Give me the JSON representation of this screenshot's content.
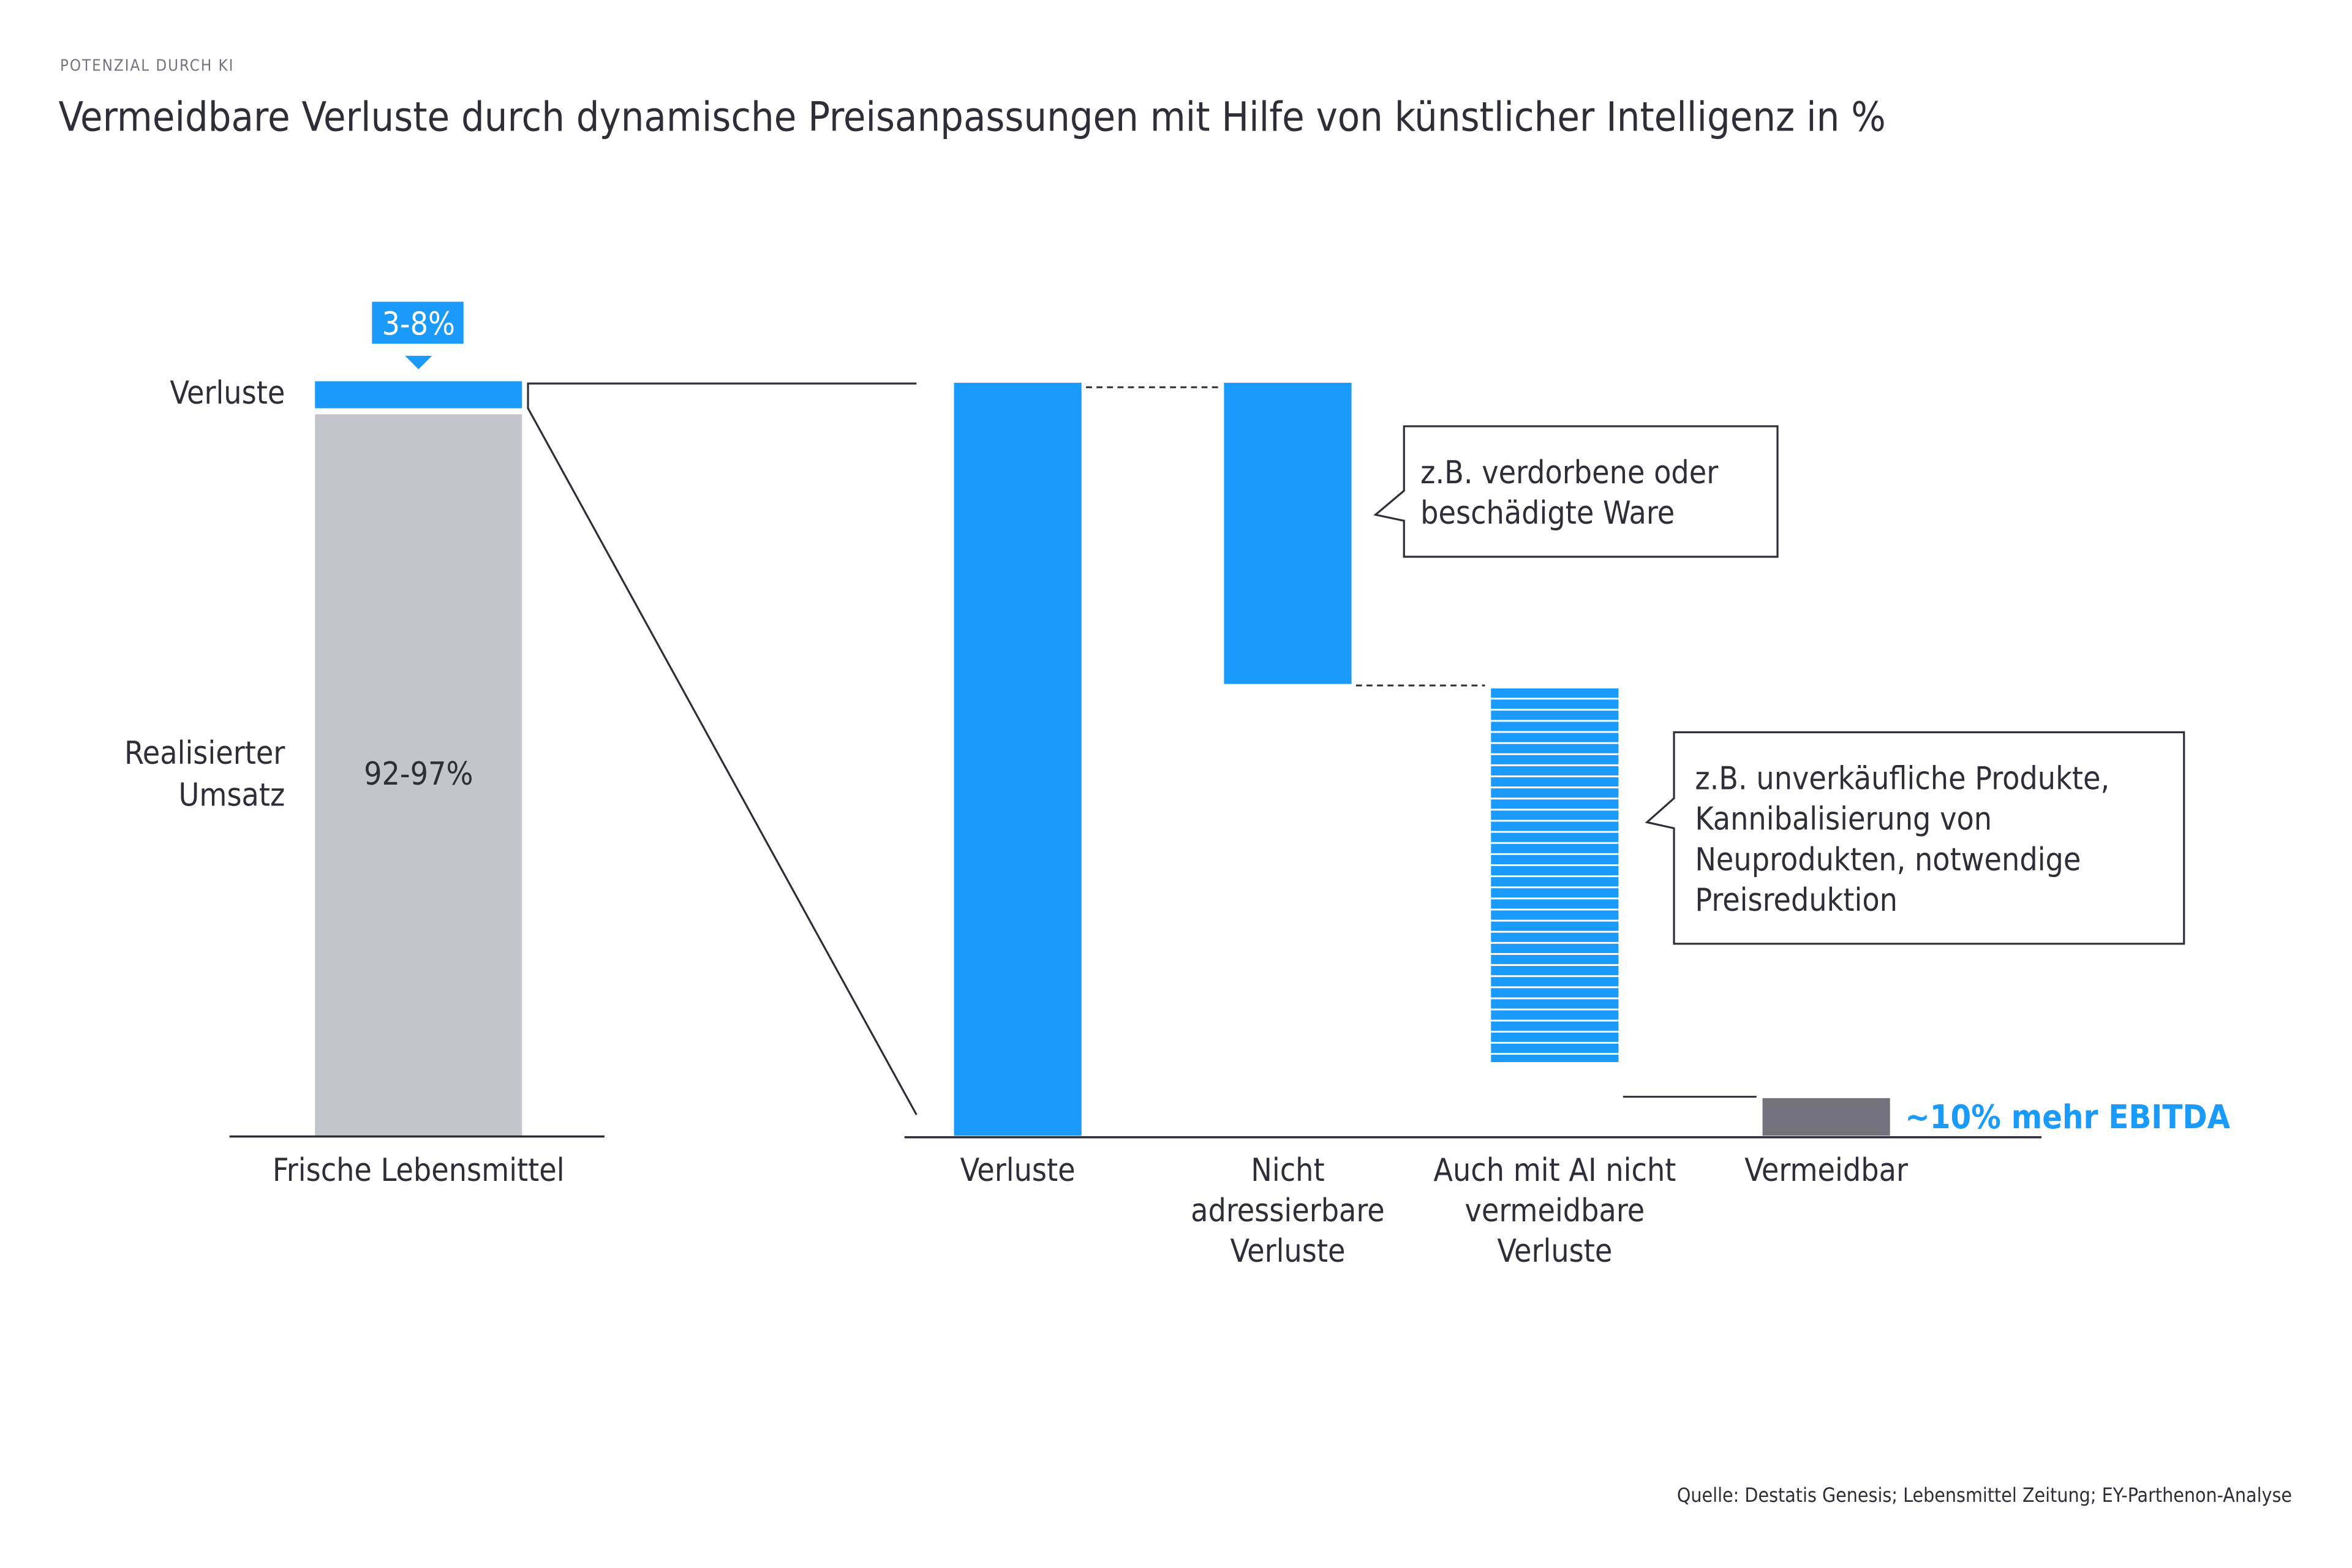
{
  "header": {
    "kicker": "POTENZIAL DURCH KI",
    "title": "Vermeidbare Verluste durch dynamische Preisanpassungen mit Hilfe von künstlicher Intelligenz in %"
  },
  "colors": {
    "blue": "#1a9afa",
    "light_gray": "#c4c4cc",
    "dark_gray": "#74737d",
    "text": "#2e2e38",
    "kicker": "#747480"
  },
  "chart_data": [
    {
      "type": "bar",
      "subtype": "stacked",
      "categories": [
        "Frische Lebensmittel"
      ],
      "series": [
        {
          "name": "Realisierter Umsatz",
          "label": "92-97%",
          "range": [
            92,
            97
          ],
          "values": [
            94.5
          ]
        },
        {
          "name": "Verluste",
          "label": "3-8%",
          "range": [
            3,
            8
          ],
          "values": [
            5.5
          ]
        }
      ],
      "segment_labels": {
        "verluste": "Verluste",
        "umsatz_line1": "Realisierter",
        "umsatz_line2": "Umsatz"
      },
      "badge": "3-8%",
      "inner_label": "92-97%",
      "xlabel": "",
      "ylabel": "",
      "ylim": [
        0,
        100
      ],
      "grid": false
    },
    {
      "type": "bar",
      "subtype": "waterfall",
      "categories": [
        [
          "Verluste"
        ],
        [
          "Nicht",
          "adressierbare",
          "Verluste"
        ],
        [
          "Auch mit AI nicht",
          "vermeidbare",
          "Verluste"
        ],
        [
          "Vermeidbar"
        ]
      ],
      "values_relative_share_of_losses": [
        100,
        -40,
        -55,
        5
      ],
      "bar_styles": [
        "solid-blue",
        "solid-blue",
        "striped-blue",
        "solid-dark-gray"
      ],
      "annotations": [
        {
          "target": 1,
          "lines": [
            "z.B. verdorbene oder",
            "beschädigte Ware"
          ]
        },
        {
          "target": 2,
          "lines": [
            "z.B. unverkäufliche Produkte,",
            "Kannibalisierung von",
            "Neuprodukten, notwendige",
            "Preisreduktion"
          ]
        },
        {
          "target": 3,
          "text": "~10% mehr EBITDA"
        }
      ],
      "ylim": [
        0,
        100
      ],
      "grid": false
    }
  ],
  "footer": {
    "source": "Quelle: Destatis Genesis; Lebensmittel Zeitung; EY-Parthenon-Analyse"
  }
}
